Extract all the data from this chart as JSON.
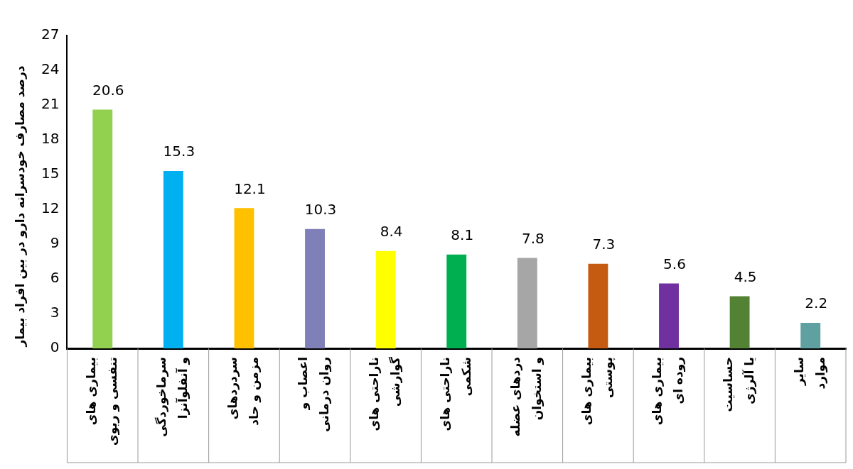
{
  "chart_data": {
    "type": "bar",
    "ylabel": "درصد مصارف خودسرانه دارو در بین افراد بیمار",
    "categories": [
      "بیماری های\nتنفسی و ریوی",
      "سرماخوردگی\nو آنفلوآنزا",
      "سردردهای\nمزمن و حاد",
      "اعصاب و\nروان درمانی",
      "ناراحتی های\nگوارشی",
      "ناراحتی های\nشکمی",
      "دردهای عضله\nو استخوان",
      "بیماری های\nپوستی",
      "بیماری های\nروده ای",
      "حساسیت\nیا آلرژی",
      "سایر\nموارد"
    ],
    "values": [
      20.6,
      15.3,
      12.1,
      10.3,
      8.4,
      8.1,
      7.8,
      7.3,
      5.6,
      4.5,
      2.2
    ],
    "colors": [
      "#92d050",
      "#00b0f0",
      "#ffc000",
      "#8080b8",
      "#ffff00",
      "#00b050",
      "#a6a6a6",
      "#c55a11",
      "#7030a0",
      "#548235",
      "#5fa0a0"
    ],
    "ylim": [
      0,
      27
    ],
    "yticks": [
      0,
      3,
      6,
      9,
      12,
      15,
      18,
      21,
      24,
      27
    ],
    "data_labels": true,
    "grid": false,
    "legend": false
  }
}
